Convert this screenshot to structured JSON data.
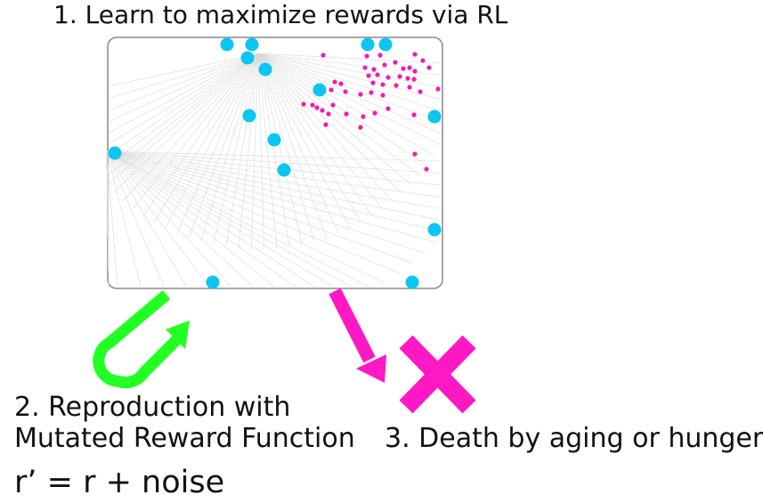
{
  "title": "1. Learn to maximize rewards via RL",
  "step2": {
    "line1": "2. Reproduction with",
    "line2": "Mutated Reward Function"
  },
  "step3": "3. Death by aging or hunger",
  "formula": "r’ = r + noise",
  "colors": {
    "agent": "#0bc6f3",
    "food": "#f21bb0",
    "reproduction_arrow": "#22ff22",
    "death_arrow": "#ff19c4",
    "death_cross": "#ff19c4",
    "arena_border": "#8a8a8a",
    "rays": "#d8d8d8"
  },
  "icons": [
    "reproduction-uturn-arrow-icon",
    "death-arrow-icon",
    "death-cross-icon"
  ]
}
